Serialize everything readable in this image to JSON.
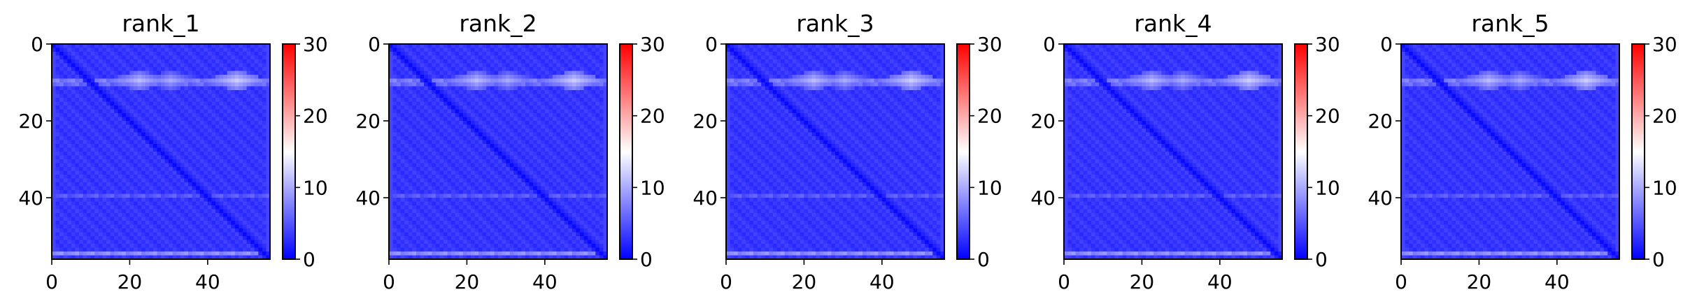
{
  "chart_data": [
    {
      "type": "heatmap",
      "title": "rank_1",
      "grid_size": [
        56,
        56
      ],
      "xlim": [
        0,
        56
      ],
      "ylim": [
        56,
        0
      ],
      "x_ticks": [
        0,
        20,
        40
      ],
      "y_ticks": [
        0,
        20,
        40
      ],
      "colorbar": {
        "range": [
          0,
          30
        ],
        "ticks": [
          0,
          10,
          20,
          30
        ],
        "colors": [
          "#0000ff",
          "#ffffff",
          "#ff0000"
        ]
      },
      "base_value": 3,
      "diagonal_value": 0.5,
      "bright_rows": [
        {
          "row": 9,
          "value": 8
        },
        {
          "row": 10,
          "value": 7
        },
        {
          "row": 39,
          "value": 6
        },
        {
          "row": 54,
          "value": 9
        }
      ],
      "bright_blobs": [
        {
          "row": 9,
          "col": 22,
          "value": 11
        },
        {
          "row": 9,
          "col": 30,
          "value": 10
        },
        {
          "row": 9,
          "col": 47,
          "value": 12
        }
      ]
    },
    {
      "type": "heatmap",
      "title": "rank_2",
      "grid_size": [
        56,
        56
      ],
      "xlim": [
        0,
        56
      ],
      "ylim": [
        56,
        0
      ],
      "x_ticks": [
        0,
        20,
        40
      ],
      "y_ticks": [
        0,
        20,
        40
      ],
      "colorbar": {
        "range": [
          0,
          30
        ],
        "ticks": [
          0,
          10,
          20,
          30
        ],
        "colors": [
          "#0000ff",
          "#ffffff",
          "#ff0000"
        ]
      },
      "base_value": 3,
      "diagonal_value": 0.5,
      "bright_rows": [
        {
          "row": 9,
          "value": 8
        },
        {
          "row": 10,
          "value": 7
        },
        {
          "row": 39,
          "value": 6
        },
        {
          "row": 54,
          "value": 9
        }
      ],
      "bright_blobs": [
        {
          "row": 9,
          "col": 22,
          "value": 11
        },
        {
          "row": 9,
          "col": 30,
          "value": 10
        },
        {
          "row": 9,
          "col": 47,
          "value": 12
        }
      ]
    },
    {
      "type": "heatmap",
      "title": "rank_3",
      "grid_size": [
        56,
        56
      ],
      "xlim": [
        0,
        56
      ],
      "ylim": [
        56,
        0
      ],
      "x_ticks": [
        0,
        20,
        40
      ],
      "y_ticks": [
        0,
        20,
        40
      ],
      "colorbar": {
        "range": [
          0,
          30
        ],
        "ticks": [
          0,
          10,
          20,
          30
        ],
        "colors": [
          "#0000ff",
          "#ffffff",
          "#ff0000"
        ]
      },
      "base_value": 3,
      "diagonal_value": 0.5,
      "bright_rows": [
        {
          "row": 9,
          "value": 8
        },
        {
          "row": 10,
          "value": 7
        },
        {
          "row": 39,
          "value": 6
        },
        {
          "row": 54,
          "value": 9
        }
      ],
      "bright_blobs": [
        {
          "row": 9,
          "col": 22,
          "value": 11
        },
        {
          "row": 9,
          "col": 30,
          "value": 10
        },
        {
          "row": 9,
          "col": 47,
          "value": 12
        }
      ]
    },
    {
      "type": "heatmap",
      "title": "rank_4",
      "grid_size": [
        56,
        56
      ],
      "xlim": [
        0,
        56
      ],
      "ylim": [
        56,
        0
      ],
      "x_ticks": [
        0,
        20,
        40
      ],
      "y_ticks": [
        0,
        20,
        40
      ],
      "colorbar": {
        "range": [
          0,
          30
        ],
        "ticks": [
          0,
          10,
          20,
          30
        ],
        "colors": [
          "#0000ff",
          "#ffffff",
          "#ff0000"
        ]
      },
      "base_value": 3,
      "diagonal_value": 0.5,
      "bright_rows": [
        {
          "row": 9,
          "value": 8
        },
        {
          "row": 10,
          "value": 7
        },
        {
          "row": 39,
          "value": 6
        },
        {
          "row": 54,
          "value": 9
        }
      ],
      "bright_blobs": [
        {
          "row": 9,
          "col": 22,
          "value": 11
        },
        {
          "row": 9,
          "col": 30,
          "value": 10
        },
        {
          "row": 9,
          "col": 47,
          "value": 12
        }
      ]
    },
    {
      "type": "heatmap",
      "title": "rank_5",
      "grid_size": [
        56,
        56
      ],
      "xlim": [
        0,
        56
      ],
      "ylim": [
        56,
        0
      ],
      "x_ticks": [
        0,
        20,
        40
      ],
      "y_ticks": [
        0,
        20,
        40
      ],
      "colorbar": {
        "range": [
          0,
          30
        ],
        "ticks": [
          0,
          10,
          20,
          30
        ],
        "colors": [
          "#0000ff",
          "#ffffff",
          "#ff0000"
        ]
      },
      "base_value": 3,
      "diagonal_value": 0.5,
      "bright_rows": [
        {
          "row": 9,
          "value": 8
        },
        {
          "row": 10,
          "value": 7
        },
        {
          "row": 39,
          "value": 6
        },
        {
          "row": 54,
          "value": 9
        }
      ],
      "bright_blobs": [
        {
          "row": 9,
          "col": 22,
          "value": 11
        },
        {
          "row": 9,
          "col": 30,
          "value": 10
        },
        {
          "row": 9,
          "col": 47,
          "value": 12
        }
      ]
    }
  ]
}
